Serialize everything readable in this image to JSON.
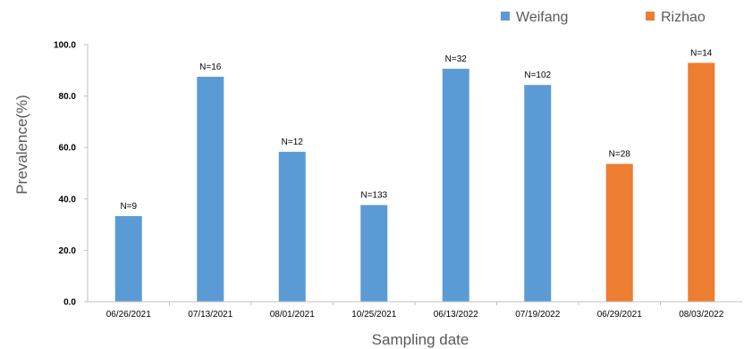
{
  "chart_data": {
    "type": "bar",
    "title": "",
    "xlabel": "Sampling date",
    "ylabel": "Prevalence(%)",
    "ylim": [
      0,
      100
    ],
    "yticks": [
      "0.0",
      "20.0",
      "40.0",
      "60.0",
      "80.0",
      "100.0"
    ],
    "ytick_values": [
      0,
      20,
      40,
      60,
      80,
      100
    ],
    "grid": false,
    "legend_position": "top-right",
    "categories": [
      "06/26/2021",
      "07/13/2021",
      "08/01/2021",
      "10/25/2021",
      "06/13/2022",
      "07/19/2022",
      "06/29/2021",
      "08/03/2022"
    ],
    "values": [
      33.3,
      87.5,
      58.3,
      37.6,
      90.6,
      84.3,
      53.6,
      92.9
    ],
    "data_labels": [
      "N=9",
      "N=16",
      "N=12",
      "N=133",
      "N=32",
      "N=102",
      "N=28",
      "N=14"
    ],
    "bar_series": [
      "Weifang",
      "Weifang",
      "Weifang",
      "Weifang",
      "Weifang",
      "Weifang",
      "Rizhao",
      "Rizhao"
    ],
    "series": [
      {
        "name": "Weifang",
        "color": "#5b9bd5"
      },
      {
        "name": "Rizhao",
        "color": "#ed7d31"
      }
    ]
  }
}
